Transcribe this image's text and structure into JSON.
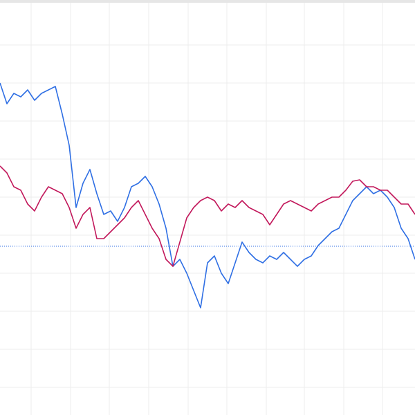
{
  "chart_data": {
    "type": "line",
    "x": [
      0,
      10,
      20,
      30,
      40,
      50,
      60,
      70,
      80,
      90,
      100,
      110,
      120,
      130,
      140,
      150,
      160,
      170,
      180,
      190,
      200,
      210,
      220,
      230,
      240,
      250,
      260,
      270,
      280,
      290,
      300,
      310,
      320,
      330,
      340,
      350,
      360,
      370,
      380,
      390,
      400,
      410,
      420,
      430,
      440,
      450,
      460,
      470,
      480,
      490,
      500,
      510,
      520,
      530,
      540,
      550,
      560,
      570,
      580,
      590,
      600
    ],
    "series": [
      {
        "color": "#2f6fe4",
        "values": [
          480,
          450,
          465,
          460,
          470,
          455,
          465,
          470,
          475,
          435,
          390,
          300,
          335,
          355,
          320,
          290,
          295,
          280,
          300,
          330,
          335,
          345,
          330,
          305,
          270,
          215,
          225,
          205,
          180,
          155,
          220,
          230,
          205,
          190,
          220,
          250,
          235,
          225,
          220,
          230,
          225,
          235,
          225,
          215,
          225,
          230,
          245,
          255,
          265,
          270,
          290,
          310,
          320,
          330,
          320,
          325,
          315,
          300,
          270,
          255,
          225
        ]
      },
      {
        "color": "#c2185b",
        "values": [
          360,
          350,
          330,
          325,
          305,
          295,
          315,
          330,
          325,
          320,
          300,
          270,
          290,
          300,
          255,
          255,
          265,
          275,
          285,
          300,
          310,
          290,
          270,
          255,
          225,
          215,
          250,
          285,
          300,
          310,
          315,
          310,
          295,
          305,
          300,
          310,
          300,
          295,
          290,
          275,
          290,
          305,
          310,
          305,
          300,
          295,
          305,
          310,
          315,
          315,
          325,
          338,
          340,
          330,
          330,
          325,
          325,
          315,
          305,
          305,
          290
        ]
      }
    ],
    "baseline": 244,
    "xlim": [
      0,
      600
    ],
    "ylim": [
      0,
      600
    ],
    "xticks": [
      45,
      102,
      158,
      215,
      272,
      328,
      385,
      440,
      497,
      553
    ],
    "yticks": [
      40,
      95,
      150,
      205,
      260,
      315,
      370,
      425,
      480,
      535
    ],
    "grid": true
  }
}
